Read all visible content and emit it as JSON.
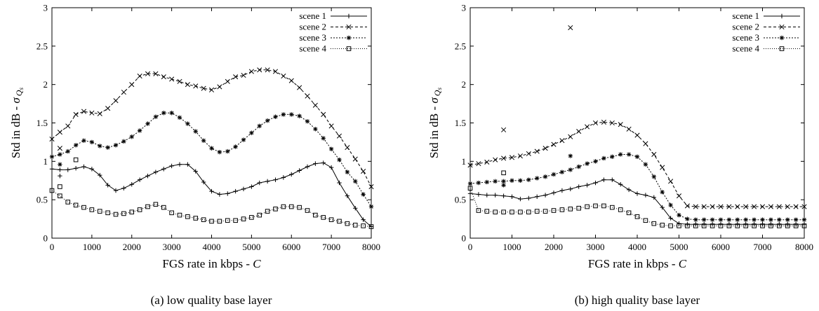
{
  "chart_data": [
    {
      "type": "line",
      "caption": "(a) low quality base layer",
      "xlabel_text": "FGS rate in kbps - ",
      "xlabel_var": "C",
      "ylabel_text": "Std in dB - ",
      "ylabel_sym": "σ",
      "ylabel_sub": "Q",
      "ylabel_subsub": "s",
      "xlim": [
        0,
        8000
      ],
      "ylim": [
        0,
        3
      ],
      "xticks": [
        "0",
        "1000",
        "2000",
        "3000",
        "4000",
        "5000",
        "6000",
        "7000",
        "8000"
      ],
      "yticks": [
        "0",
        "0.5",
        "1",
        "1.5",
        "2",
        "2.5",
        "3"
      ],
      "grid": false,
      "legend_position": "top-right",
      "series": [
        {
          "name": "scene 1",
          "marker": "plus",
          "dash": "",
          "x": [
            0,
            200,
            400,
            600,
            800,
            1000,
            1200,
            1400,
            1600,
            1800,
            2000,
            2200,
            2400,
            2600,
            2800,
            3000,
            3200,
            3400,
            3600,
            3800,
            4000,
            4200,
            4400,
            4600,
            4800,
            5000,
            5200,
            5400,
            5600,
            5800,
            6000,
            6200,
            6400,
            6600,
            6800,
            7000,
            7200,
            7400,
            7600,
            7800,
            8000
          ],
          "y": [
            0.9,
            0.89,
            0.89,
            0.91,
            0.93,
            0.9,
            0.82,
            0.69,
            0.62,
            0.65,
            0.7,
            0.76,
            0.81,
            0.86,
            0.9,
            0.94,
            0.96,
            0.96,
            0.87,
            0.73,
            0.61,
            0.57,
            0.58,
            0.61,
            0.64,
            0.67,
            0.72,
            0.74,
            0.76,
            0.79,
            0.83,
            0.88,
            0.93,
            0.97,
            0.98,
            0.92,
            0.72,
            0.55,
            0.39,
            0.24,
            0.15
          ]
        },
        {
          "name": "scene 2",
          "marker": "x",
          "dash": "4,3",
          "x": [
            0,
            200,
            400,
            600,
            800,
            1000,
            1200,
            1400,
            1600,
            1800,
            2000,
            2200,
            2400,
            2600,
            2800,
            3000,
            3200,
            3400,
            3600,
            3800,
            4000,
            4200,
            4400,
            4600,
            4800,
            5000,
            5200,
            5400,
            5600,
            5800,
            6000,
            6200,
            6400,
            6600,
            6800,
            7000,
            7200,
            7400,
            7600,
            7800,
            8000
          ],
          "y": [
            1.29,
            1.38,
            1.46,
            1.61,
            1.65,
            1.63,
            1.62,
            1.69,
            1.79,
            1.9,
            2.0,
            2.11,
            2.14,
            2.14,
            2.1,
            2.07,
            2.04,
            2.0,
            1.98,
            1.95,
            1.93,
            1.97,
            2.04,
            2.1,
            2.12,
            2.17,
            2.19,
            2.19,
            2.17,
            2.11,
            2.05,
            1.96,
            1.85,
            1.73,
            1.61,
            1.46,
            1.33,
            1.18,
            1.03,
            0.87,
            0.67
          ]
        },
        {
          "name": "scene 3",
          "marker": "star",
          "dash": "2,2",
          "x": [
            0,
            200,
            400,
            600,
            800,
            1000,
            1200,
            1400,
            1600,
            1800,
            2000,
            2200,
            2400,
            2600,
            2800,
            3000,
            3200,
            3400,
            3600,
            3800,
            4000,
            4200,
            4400,
            4600,
            4800,
            5000,
            5200,
            5400,
            5600,
            5800,
            6000,
            6200,
            6400,
            6600,
            6800,
            7000,
            7200,
            7400,
            7600,
            7800,
            8000
          ],
          "y": [
            1.06,
            1.09,
            1.13,
            1.21,
            1.27,
            1.25,
            1.2,
            1.18,
            1.21,
            1.26,
            1.32,
            1.4,
            1.49,
            1.58,
            1.63,
            1.63,
            1.57,
            1.49,
            1.39,
            1.27,
            1.17,
            1.12,
            1.13,
            1.19,
            1.28,
            1.37,
            1.46,
            1.53,
            1.58,
            1.61,
            1.61,
            1.59,
            1.52,
            1.42,
            1.3,
            1.16,
            1.02,
            0.86,
            0.74,
            0.57,
            0.41
          ]
        },
        {
          "name": "scene 4",
          "marker": "square",
          "dash": "1,2",
          "x": [
            0,
            200,
            400,
            600,
            800,
            1000,
            1200,
            1400,
            1600,
            1800,
            2000,
            2200,
            2400,
            2600,
            2800,
            3000,
            3200,
            3400,
            3600,
            3800,
            4000,
            4200,
            4400,
            4600,
            4800,
            5000,
            5200,
            5400,
            5600,
            5800,
            6000,
            6200,
            6400,
            6600,
            6800,
            7000,
            7200,
            7400,
            7600,
            7800,
            8000
          ],
          "y": [
            0.62,
            0.55,
            0.47,
            0.43,
            0.4,
            0.37,
            0.35,
            0.33,
            0.31,
            0.32,
            0.34,
            0.37,
            0.41,
            0.44,
            0.4,
            0.33,
            0.3,
            0.28,
            0.26,
            0.24,
            0.22,
            0.22,
            0.23,
            0.23,
            0.25,
            0.27,
            0.3,
            0.35,
            0.38,
            0.41,
            0.41,
            0.4,
            0.36,
            0.3,
            0.27,
            0.24,
            0.22,
            0.19,
            0.17,
            0.16,
            0.15
          ]
        }
      ],
      "outliers": [
        {
          "series": 0,
          "x": 200,
          "y": 0.81
        },
        {
          "series": 1,
          "x": 200,
          "y": 1.17
        },
        {
          "series": 2,
          "x": 200,
          "y": 0.96
        },
        {
          "series": 3,
          "x": 200,
          "y": 0.67
        },
        {
          "series": 3,
          "x": 600,
          "y": 1.02
        }
      ]
    },
    {
      "type": "line",
      "caption": "(b) high quality base layer",
      "xlabel_text": "FGS rate in kbps - ",
      "xlabel_var": "C",
      "ylabel_text": "Std in dB - ",
      "ylabel_sym": "σ",
      "ylabel_sub": "Q",
      "ylabel_subsub": "s",
      "xlim": [
        0,
        8000
      ],
      "ylim": [
        0,
        3
      ],
      "xticks": [
        "0",
        "1000",
        "2000",
        "3000",
        "4000",
        "5000",
        "6000",
        "7000",
        "8000"
      ],
      "yticks": [
        "0",
        "0.5",
        "1",
        "1.5",
        "2",
        "2.5",
        "3"
      ],
      "grid": false,
      "legend_position": "top-right",
      "series": [
        {
          "name": "scene 1",
          "marker": "plus",
          "dash": "",
          "x": [
            0,
            200,
            400,
            600,
            800,
            1000,
            1200,
            1400,
            1600,
            1800,
            2000,
            2200,
            2400,
            2600,
            2800,
            3000,
            3200,
            3400,
            3600,
            3800,
            4000,
            4200,
            4400,
            4600,
            4800,
            5000,
            5200,
            5400,
            5600,
            5800,
            6000,
            6200,
            6400,
            6600,
            6800,
            7000,
            7200,
            7400,
            7600,
            7800,
            8000
          ],
          "y": [
            0.58,
            0.57,
            0.56,
            0.56,
            0.55,
            0.54,
            0.51,
            0.52,
            0.54,
            0.56,
            0.59,
            0.62,
            0.64,
            0.67,
            0.69,
            0.72,
            0.76,
            0.76,
            0.7,
            0.63,
            0.58,
            0.56,
            0.53,
            0.4,
            0.26,
            0.19,
            0.18,
            0.18,
            0.18,
            0.18,
            0.18,
            0.18,
            0.18,
            0.18,
            0.18,
            0.18,
            0.18,
            0.18,
            0.18,
            0.18,
            0.18
          ]
        },
        {
          "name": "scene 2",
          "marker": "x",
          "dash": "4,3",
          "x": [
            0,
            200,
            400,
            600,
            800,
            1000,
            1200,
            1400,
            1600,
            1800,
            2000,
            2200,
            2400,
            2600,
            2800,
            3000,
            3200,
            3400,
            3600,
            3800,
            4000,
            4200,
            4400,
            4600,
            4800,
            5000,
            5200,
            5400,
            5600,
            5800,
            6000,
            6200,
            6400,
            6600,
            6800,
            7000,
            7200,
            7400,
            7600,
            7800,
            8000
          ],
          "y": [
            0.95,
            0.97,
            0.99,
            1.02,
            1.04,
            1.05,
            1.07,
            1.1,
            1.13,
            1.17,
            1.22,
            1.27,
            1.32,
            1.39,
            1.45,
            1.5,
            1.51,
            1.5,
            1.48,
            1.42,
            1.34,
            1.23,
            1.09,
            0.92,
            0.74,
            0.55,
            0.42,
            0.41,
            0.41,
            0.41,
            0.41,
            0.41,
            0.41,
            0.41,
            0.41,
            0.41,
            0.41,
            0.41,
            0.41,
            0.41,
            0.41
          ]
        },
        {
          "name": "scene 3",
          "marker": "star",
          "dash": "2,2",
          "x": [
            0,
            200,
            400,
            600,
            800,
            1000,
            1200,
            1400,
            1600,
            1800,
            2000,
            2200,
            2400,
            2600,
            2800,
            3000,
            3200,
            3400,
            3600,
            3800,
            4000,
            4200,
            4400,
            4600,
            4800,
            5000,
            5200,
            5400,
            5600,
            5800,
            6000,
            6200,
            6400,
            6600,
            6800,
            7000,
            7200,
            7400,
            7600,
            7800,
            8000
          ],
          "y": [
            0.71,
            0.72,
            0.73,
            0.74,
            0.74,
            0.75,
            0.75,
            0.76,
            0.78,
            0.8,
            0.83,
            0.86,
            0.89,
            0.93,
            0.97,
            1.0,
            1.04,
            1.06,
            1.09,
            1.09,
            1.06,
            0.96,
            0.8,
            0.6,
            0.43,
            0.3,
            0.25,
            0.24,
            0.24,
            0.24,
            0.24,
            0.24,
            0.24,
            0.24,
            0.24,
            0.24,
            0.24,
            0.24,
            0.24,
            0.24,
            0.24
          ]
        },
        {
          "name": "scene 4",
          "marker": "square",
          "dash": "1,2",
          "x": [
            0,
            200,
            400,
            600,
            800,
            1000,
            1200,
            1400,
            1600,
            1800,
            2000,
            2200,
            2400,
            2600,
            2800,
            3000,
            3200,
            3400,
            3600,
            3800,
            4000,
            4200,
            4400,
            4600,
            4800,
            5000,
            5200,
            5400,
            5600,
            5800,
            6000,
            6200,
            6400,
            6600,
            6800,
            7000,
            7200,
            7400,
            7600,
            7800,
            8000
          ],
          "y": [
            0.65,
            0.36,
            0.35,
            0.34,
            0.34,
            0.34,
            0.34,
            0.34,
            0.35,
            0.35,
            0.36,
            0.37,
            0.38,
            0.39,
            0.41,
            0.42,
            0.42,
            0.4,
            0.37,
            0.33,
            0.28,
            0.23,
            0.19,
            0.17,
            0.16,
            0.16,
            0.16,
            0.16,
            0.16,
            0.16,
            0.16,
            0.16,
            0.16,
            0.16,
            0.16,
            0.16,
            0.16,
            0.16,
            0.16,
            0.16,
            0.16
          ]
        }
      ],
      "outliers": [
        {
          "series": 1,
          "x": 800,
          "y": 1.41
        },
        {
          "series": 1,
          "x": 2400,
          "y": 2.74
        },
        {
          "series": 3,
          "x": 800,
          "y": 0.85
        },
        {
          "series": 2,
          "x": 800,
          "y": 0.69
        },
        {
          "series": 2,
          "x": 2400,
          "y": 1.07
        }
      ]
    }
  ]
}
